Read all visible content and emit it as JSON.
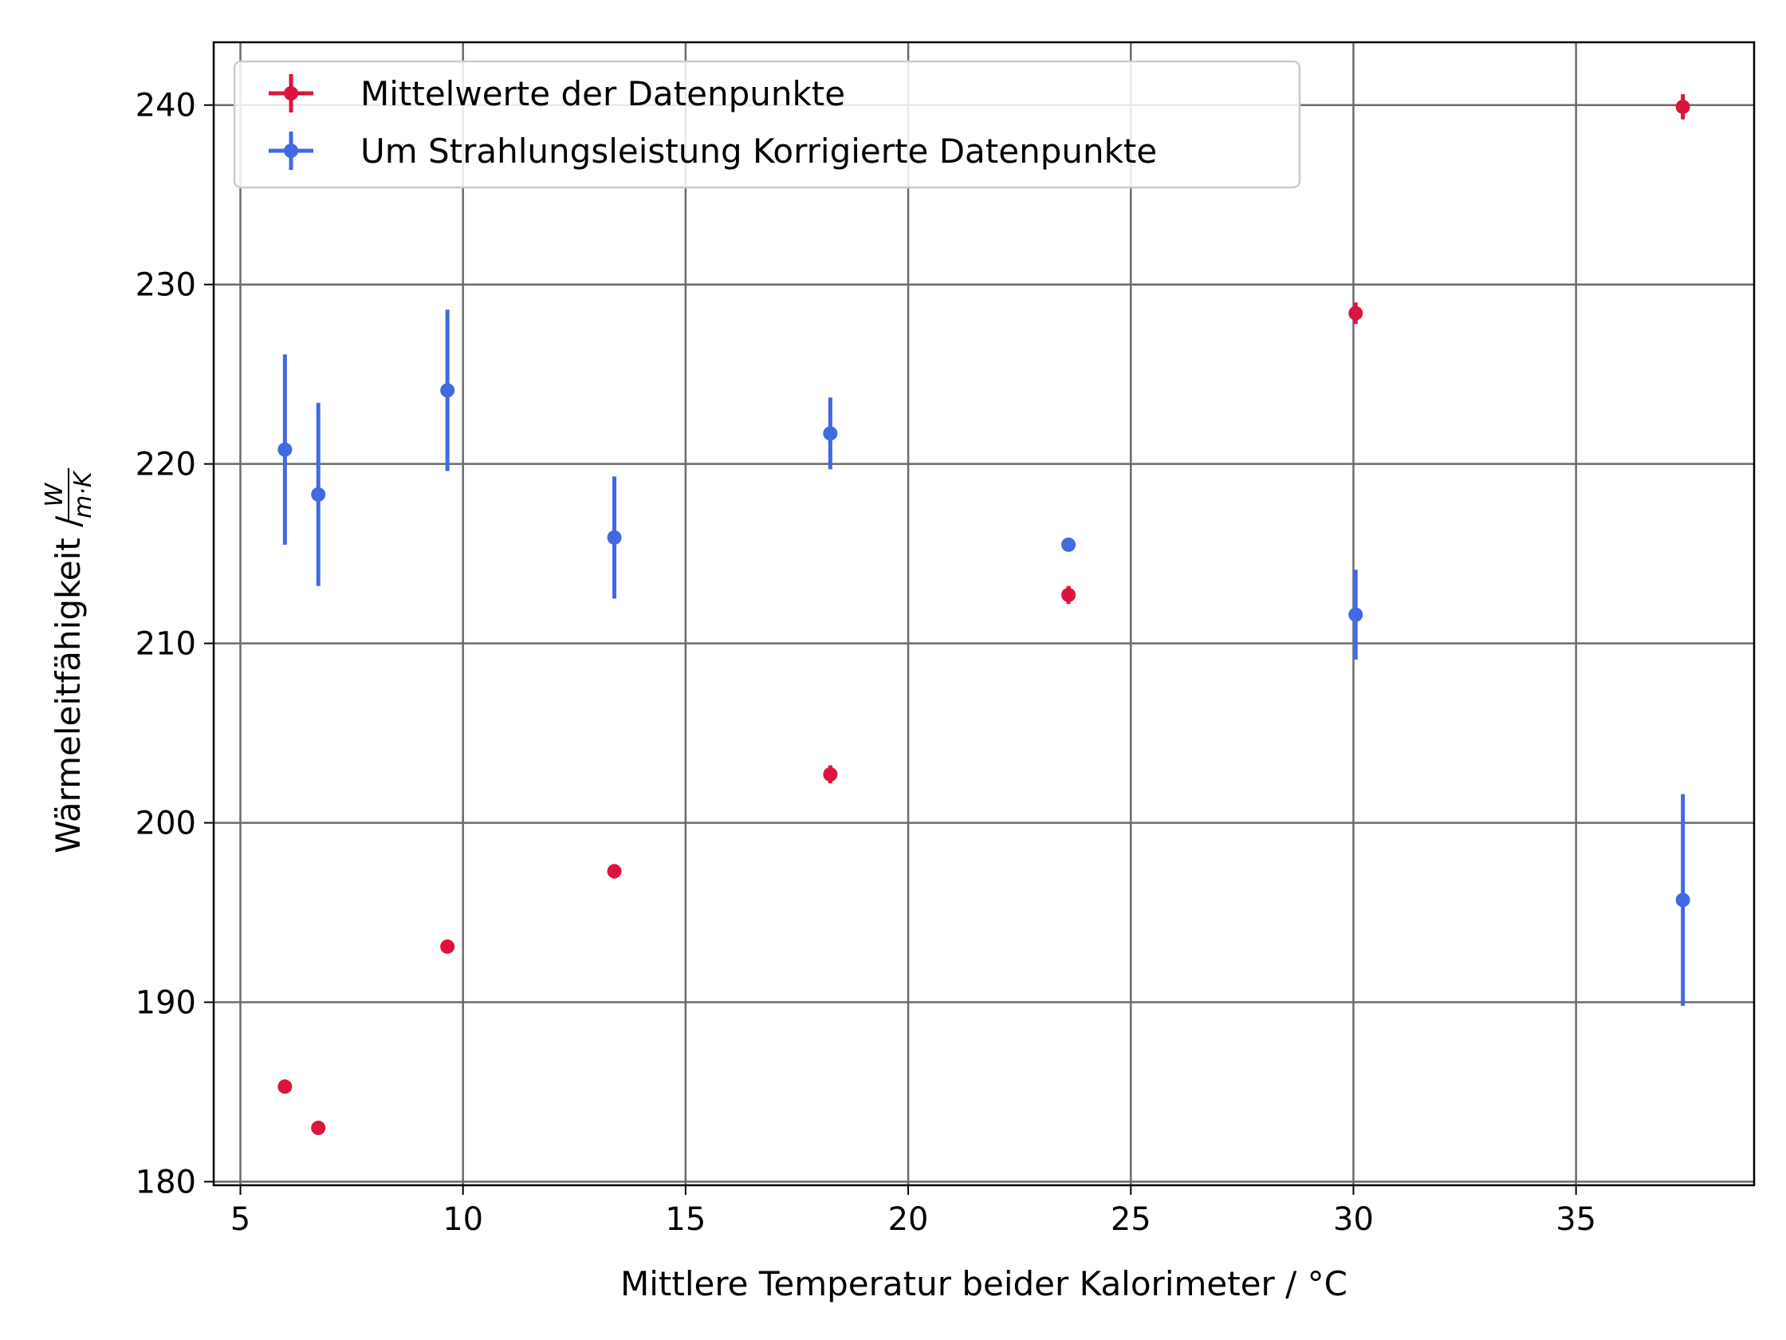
{
  "chart_data": {
    "type": "scatter",
    "xlabel": "Mittlere Temperatur beider Kalorimeter / °C",
    "ylabel": "Wärmeleitfähigkeit / ",
    "ylabel_unit_numerator": "W",
    "ylabel_unit_denominator": "m·K",
    "xlim": [
      4.4,
      39.0
    ],
    "ylim": [
      179.8,
      243.5
    ],
    "x_ticks": [
      5,
      10,
      15,
      20,
      25,
      30,
      35
    ],
    "y_ticks": [
      180,
      190,
      200,
      210,
      220,
      230,
      240
    ],
    "x_tick_labels": [
      "5",
      "10",
      "15",
      "20",
      "25",
      "30",
      "35"
    ],
    "y_tick_labels": [
      "180",
      "190",
      "200",
      "210",
      "220",
      "230",
      "240"
    ],
    "grid": true,
    "legend_position": "top-left",
    "series": [
      {
        "name": "Mittelwerte der Datenpunkte",
        "color": "#dc143c",
        "points": [
          {
            "x": 6.0,
            "y": 185.3,
            "yerr": 0.2
          },
          {
            "x": 6.75,
            "y": 183.0,
            "yerr": 0.2
          },
          {
            "x": 9.65,
            "y": 193.1,
            "yerr": 0.2
          },
          {
            "x": 13.4,
            "y": 197.3,
            "yerr": 0.4
          },
          {
            "x": 18.25,
            "y": 202.7,
            "yerr": 0.5
          },
          {
            "x": 23.6,
            "y": 212.7,
            "yerr": 0.5
          },
          {
            "x": 30.05,
            "y": 228.4,
            "yerr": 0.6
          },
          {
            "x": 37.4,
            "y": 239.9,
            "yerr": 0.7
          }
        ]
      },
      {
        "name": "Um Strahlungsleistung Korrigierte Datenpunkte",
        "color": "#4169e1",
        "points": [
          {
            "x": 6.0,
            "y": 220.8,
            "yerr": 5.3
          },
          {
            "x": 6.75,
            "y": 218.3,
            "yerr": 5.1
          },
          {
            "x": 9.65,
            "y": 224.1,
            "yerr": 4.5
          },
          {
            "x": 13.4,
            "y": 215.9,
            "yerr": 3.4
          },
          {
            "x": 18.25,
            "y": 221.7,
            "yerr": 2.0
          },
          {
            "x": 23.6,
            "y": 215.5,
            "yerr": 0.0
          },
          {
            "x": 30.05,
            "y": 211.6,
            "yerr": 2.5
          },
          {
            "x": 37.4,
            "y": 195.7,
            "yerr": 5.9
          }
        ]
      }
    ]
  }
}
